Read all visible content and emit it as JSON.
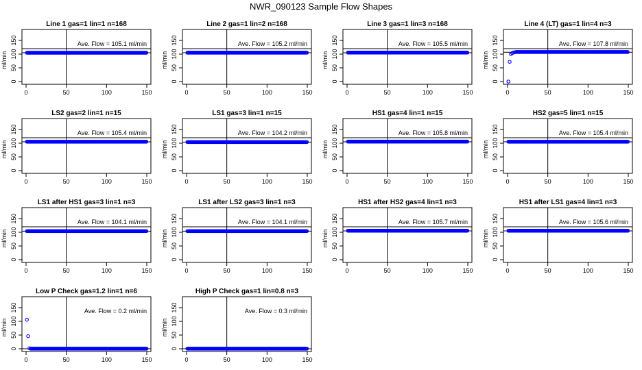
{
  "figure": {
    "title": "NWR_090123  Sample Flow Shapes",
    "point_color": "#0000ff"
  },
  "chart_data": [
    {
      "type": "scatter",
      "title": "Line 1 gas=1 lin=1 n=168",
      "xlabel": "",
      "ylabel": "ml/min",
      "xlim": [
        0,
        150
      ],
      "ylim": [
        -10,
        190
      ],
      "xticks": [
        0,
        50,
        100,
        150
      ],
      "yticks": [
        0,
        50,
        100,
        150
      ],
      "annotation": "Ave. Flow =  105.1  ml/min",
      "ref_x": 50,
      "hlines": [
        105,
        120
      ],
      "lead_y": [],
      "y_level": 105.1,
      "grid": false
    },
    {
      "type": "scatter",
      "title": "Line 2 gas=1 lin=2 n=168",
      "xlabel": "",
      "ylabel": "ml/min",
      "xlim": [
        0,
        150
      ],
      "ylim": [
        -10,
        190
      ],
      "xticks": [
        0,
        50,
        100,
        150
      ],
      "yticks": [
        0,
        50,
        100,
        150
      ],
      "annotation": "Ave. Flow =  105.2  ml/min",
      "ref_x": 50,
      "hlines": [
        105,
        120
      ],
      "lead_y": [],
      "y_level": 105.2,
      "grid": false
    },
    {
      "type": "scatter",
      "title": "Line 3 gas=1 lin=3 n=168",
      "xlabel": "",
      "ylabel": "ml/min",
      "xlim": [
        0,
        150
      ],
      "ylim": [
        -10,
        190
      ],
      "xticks": [
        0,
        50,
        100,
        150
      ],
      "yticks": [
        0,
        50,
        100,
        150
      ],
      "annotation": "Ave. Flow =  105.5  ml/min",
      "ref_x": 50,
      "hlines": [
        105,
        120
      ],
      "lead_y": [],
      "y_level": 105.5,
      "grid": false
    },
    {
      "type": "scatter",
      "title": "Line 4 (LT) gas=1 lin=4 n=3",
      "xlabel": "",
      "ylabel": "ml/min",
      "xlim": [
        0,
        150
      ],
      "ylim": [
        -10,
        190
      ],
      "xticks": [
        0,
        50,
        100,
        150
      ],
      "yticks": [
        0,
        50,
        100,
        150
      ],
      "annotation": "Ave. Flow =  107.8  ml/min",
      "ref_x": 50,
      "hlines": [
        107,
        120
      ],
      "lead_y": [
        0,
        72,
        100,
        104,
        106,
        107
      ],
      "y_level": 107.8,
      "grid": false
    },
    {
      "type": "scatter",
      "title": "LS2 gas=2 lin=1 n=15",
      "xlabel": "",
      "ylabel": "ml/min",
      "xlim": [
        0,
        150
      ],
      "ylim": [
        -10,
        190
      ],
      "xticks": [
        0,
        50,
        100,
        150
      ],
      "yticks": [
        0,
        50,
        100,
        150
      ],
      "annotation": "Ave. Flow =  105.4  ml/min",
      "ref_x": 50,
      "hlines": [
        105,
        120
      ],
      "lead_y": [],
      "y_level": 105.4,
      "grid": false
    },
    {
      "type": "scatter",
      "title": "LS1 gas=3 lin=1 n=15",
      "xlabel": "",
      "ylabel": "ml/min",
      "xlim": [
        0,
        150
      ],
      "ylim": [
        -10,
        190
      ],
      "xticks": [
        0,
        50,
        100,
        150
      ],
      "yticks": [
        0,
        50,
        100,
        150
      ],
      "annotation": "Ave. Flow =  104.2  ml/min",
      "ref_x": 50,
      "hlines": [
        104,
        120
      ],
      "lead_y": [],
      "y_level": 104.2,
      "grid": false
    },
    {
      "type": "scatter",
      "title": "HS1 gas=4 lin=1 n=15",
      "xlabel": "",
      "ylabel": "ml/min",
      "xlim": [
        0,
        150
      ],
      "ylim": [
        -10,
        190
      ],
      "xticks": [
        0,
        50,
        100,
        150
      ],
      "yticks": [
        0,
        50,
        100,
        150
      ],
      "annotation": "Ave. Flow =  105.8  ml/min",
      "ref_x": 50,
      "hlines": [
        105,
        120
      ],
      "lead_y": [],
      "y_level": 105.8,
      "grid": false
    },
    {
      "type": "scatter",
      "title": "HS2 gas=5 lin=1 n=15",
      "xlabel": "",
      "ylabel": "ml/min",
      "xlim": [
        0,
        150
      ],
      "ylim": [
        -10,
        190
      ],
      "xticks": [
        0,
        50,
        100,
        150
      ],
      "yticks": [
        0,
        50,
        100,
        150
      ],
      "annotation": "Ave. Flow =  105.4  ml/min",
      "ref_x": 50,
      "hlines": [
        105,
        120
      ],
      "lead_y": [],
      "y_level": 105.4,
      "grid": false
    },
    {
      "type": "scatter",
      "title": "LS1 after HS1 gas=3 lin=1 n=3",
      "xlabel": "",
      "ylabel": "ml/min",
      "xlim": [
        0,
        150
      ],
      "ylim": [
        -10,
        190
      ],
      "xticks": [
        0,
        50,
        100,
        150
      ],
      "yticks": [
        0,
        50,
        100,
        150
      ],
      "annotation": "Ave. Flow =  104.1  ml/min",
      "ref_x": 50,
      "hlines": [
        104,
        120
      ],
      "lead_y": [],
      "y_level": 104.1,
      "grid": false
    },
    {
      "type": "scatter",
      "title": "LS1 after LS2 gas=3 lin=1 n=3",
      "xlabel": "",
      "ylabel": "ml/min",
      "xlim": [
        0,
        150
      ],
      "ylim": [
        -10,
        190
      ],
      "xticks": [
        0,
        50,
        100,
        150
      ],
      "yticks": [
        0,
        50,
        100,
        150
      ],
      "annotation": "Ave. Flow =  104.1  ml/min",
      "ref_x": 50,
      "hlines": [
        104,
        120
      ],
      "lead_y": [],
      "y_level": 104.1,
      "grid": false
    },
    {
      "type": "scatter",
      "title": "HS1 after HS2 gas=4 lin=1 n=3",
      "xlabel": "",
      "ylabel": "ml/min",
      "xlim": [
        0,
        150
      ],
      "ylim": [
        -10,
        190
      ],
      "xticks": [
        0,
        50,
        100,
        150
      ],
      "yticks": [
        0,
        50,
        100,
        150
      ],
      "annotation": "Ave. Flow =  105.7  ml/min",
      "ref_x": 50,
      "hlines": [
        105,
        120
      ],
      "lead_y": [],
      "y_level": 105.7,
      "grid": false
    },
    {
      "type": "scatter",
      "title": "HS1 after LS1 gas=4 lin=1 n=3",
      "xlabel": "",
      "ylabel": "ml/min",
      "xlim": [
        0,
        150
      ],
      "ylim": [
        -10,
        190
      ],
      "xticks": [
        0,
        50,
        100,
        150
      ],
      "yticks": [
        0,
        50,
        100,
        150
      ],
      "annotation": "Ave. Flow =  105.6  ml/min",
      "ref_x": 50,
      "hlines": [
        105,
        120
      ],
      "lead_y": [],
      "y_level": 105.6,
      "grid": false
    },
    {
      "type": "scatter",
      "title": "Low P Check gas=1.2 lin=1 n=6",
      "xlabel": "",
      "ylabel": "ml/min",
      "xlim": [
        0,
        150
      ],
      "ylim": [
        -10,
        190
      ],
      "xticks": [
        0,
        50,
        100,
        150
      ],
      "yticks": [
        0,
        50,
        100,
        150
      ],
      "annotation": "Ave. Flow =  0.2  ml/min",
      "ref_x": 50,
      "hlines": [
        0
      ],
      "lead_y": [
        106,
        46,
        2
      ],
      "y_level": 0.2,
      "grid": false
    },
    {
      "type": "scatter",
      "title": "High P Check gas=1 lin=0.8 n=3",
      "xlabel": "",
      "ylabel": "ml/min",
      "xlim": [
        0,
        150
      ],
      "ylim": [
        -10,
        190
      ],
      "xticks": [
        0,
        50,
        100,
        150
      ],
      "yticks": [
        0,
        50,
        100,
        150
      ],
      "annotation": "Ave. Flow =  0.3  ml/min",
      "ref_x": 50,
      "hlines": [
        0
      ],
      "lead_y": [],
      "y_level": 0.3,
      "grid": false
    }
  ]
}
